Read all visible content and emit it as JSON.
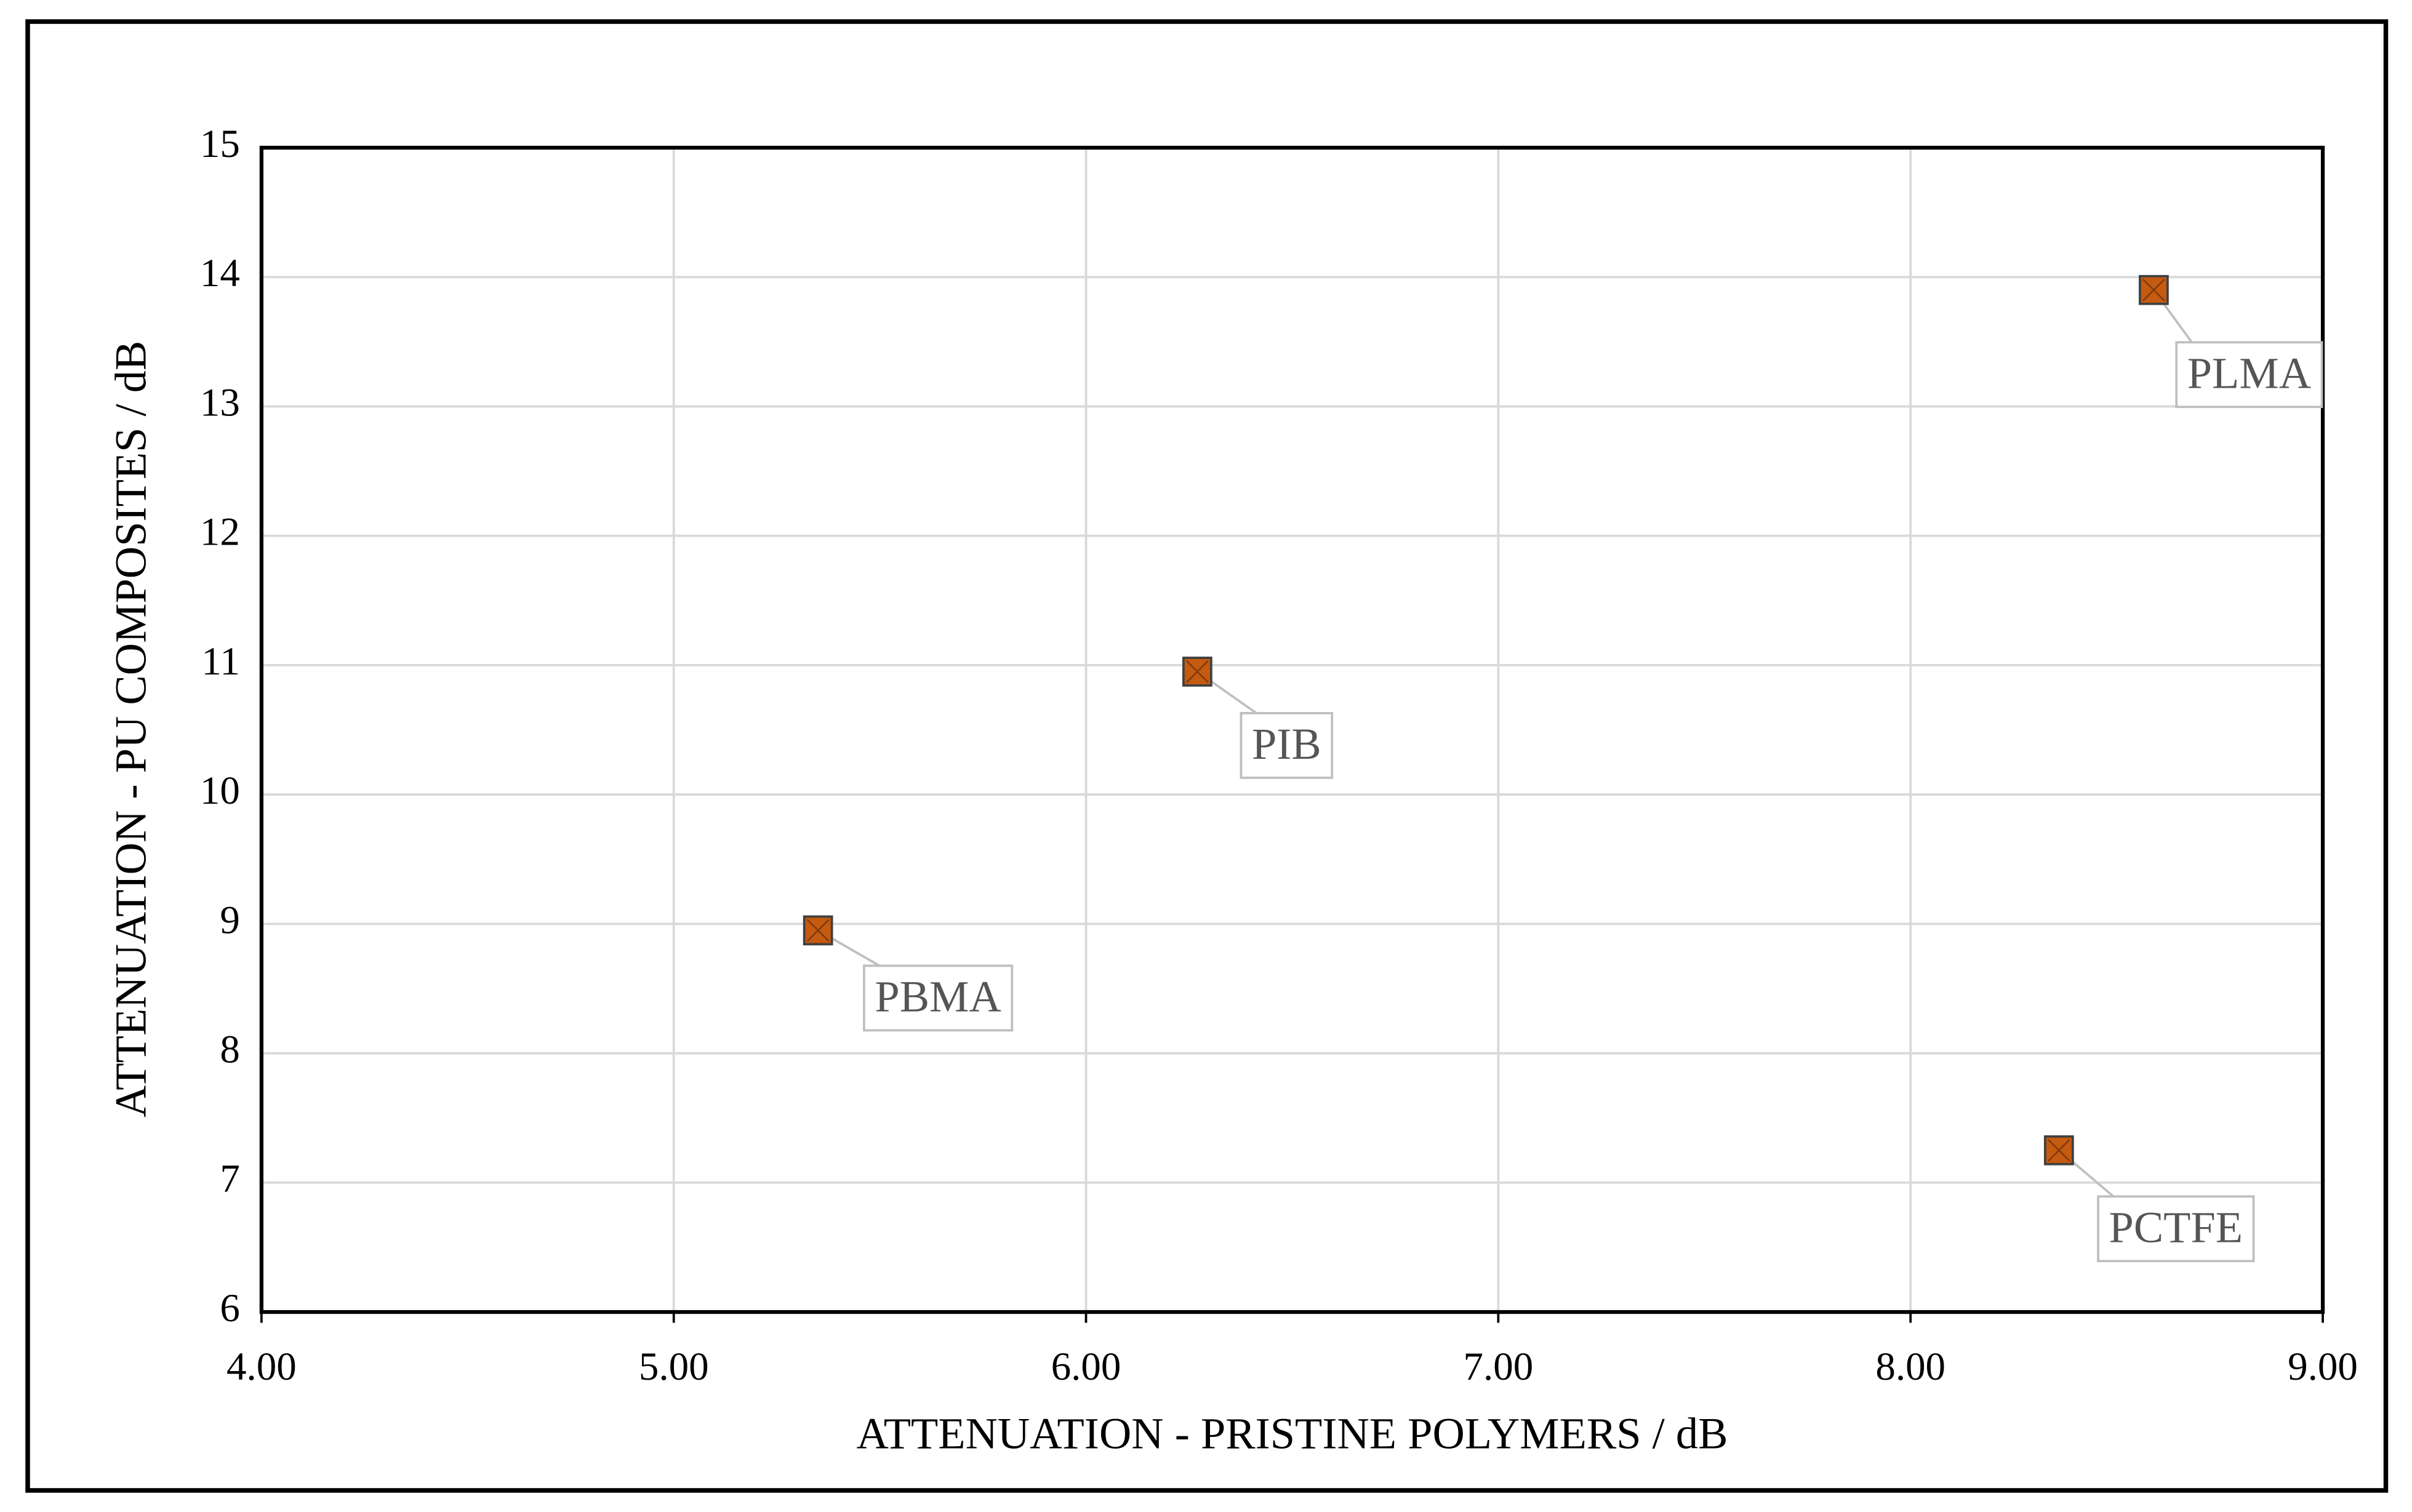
{
  "chart_data": {
    "type": "scatter",
    "x_label": "ATTENUATION - PRISTINE POLYMERS / dB",
    "y_label": "ATTENUATION - PU COMPOSITES / dB",
    "series": [
      {
        "color": "#c55a11",
        "labels": [
          "PBMA",
          "PIB",
          "PLMA",
          "PCTFE"
        ],
        "x": [
          5.35,
          6.27,
          8.59,
          8.36
        ],
        "values": [
          8.95,
          10.95,
          13.9,
          7.25
        ]
      }
    ],
    "xlim": [
      4,
      9
    ],
    "xticks": [
      {
        "value": 4,
        "label": "4.00"
      },
      {
        "value": 5,
        "label": "5.00"
      },
      {
        "value": 6,
        "label": "6.00"
      },
      {
        "value": 7,
        "label": "7.00"
      },
      {
        "value": 8,
        "label": "8.00"
      },
      {
        "value": 9,
        "label": "9.00"
      }
    ],
    "ylim": [
      6,
      15
    ],
    "yticks": [
      6,
      7,
      8,
      9,
      10,
      11,
      12,
      13,
      14,
      15
    ],
    "grid": true
  }
}
